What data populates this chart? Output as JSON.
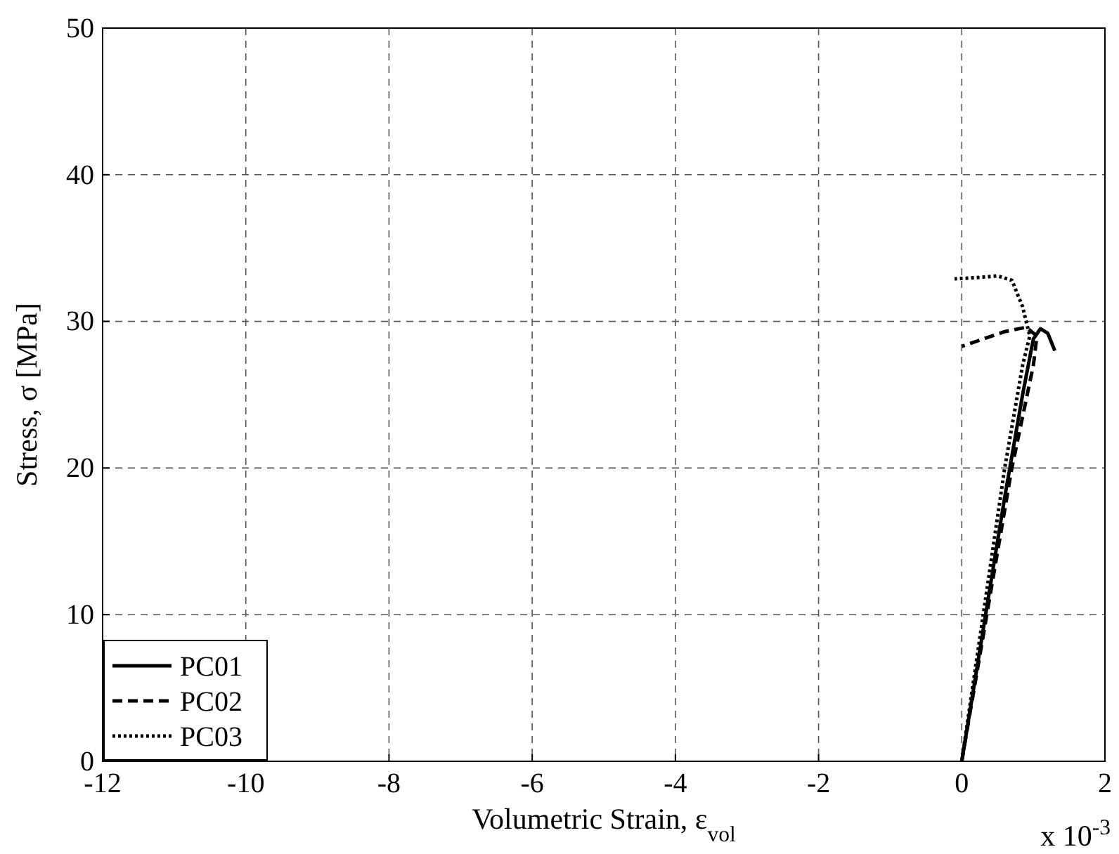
{
  "chart_data": {
    "type": "line",
    "xlabel": "Volumetric Strain, ε$_{vol}$",
    "ylabel": "Stress, σ [MPa]",
    "annotations": [
      "x 10$^{-3}$"
    ],
    "xlim": [
      -12,
      2
    ],
    "xticks": [
      -12,
      -10,
      -8,
      -6,
      -4,
      -2,
      0,
      2
    ],
    "ylim": [
      0,
      50
    ],
    "yticks": [
      0,
      10,
      20,
      30,
      40,
      50
    ],
    "grid": true,
    "legend": "bottom left",
    "marker": "none",
    "series": [
      {
        "name": "PC01",
        "color": "#000000",
        "line_style": "solid",
        "x": [
          0,
          0.3,
          0.6,
          0.85,
          1.0,
          1.1,
          1.2,
          1.3
        ],
        "values": [
          0,
          9,
          18,
          25,
          28.8,
          29.5,
          29.2,
          28.0
        ]
      },
      {
        "name": "PC02",
        "color": "#000000",
        "line_style": "dashed",
        "x": [
          0,
          0.35,
          0.7,
          1.0,
          1.05,
          0.9,
          0.6,
          0.3,
          0
        ],
        "values": [
          0,
          10,
          20,
          27,
          29,
          29.6,
          29.3,
          28.8,
          28.3
        ]
      },
      {
        "name": "PC03",
        "color": "#000000",
        "line_style": "dotted",
        "x": [
          0,
          0.3,
          0.6,
          0.85,
          0.95,
          0.85,
          0.7,
          0.5,
          0.25,
          -0.1
        ],
        "values": [
          0,
          10,
          20,
          27,
          29,
          31,
          32.8,
          33.1,
          33.0,
          32.9
        ]
      }
    ]
  }
}
